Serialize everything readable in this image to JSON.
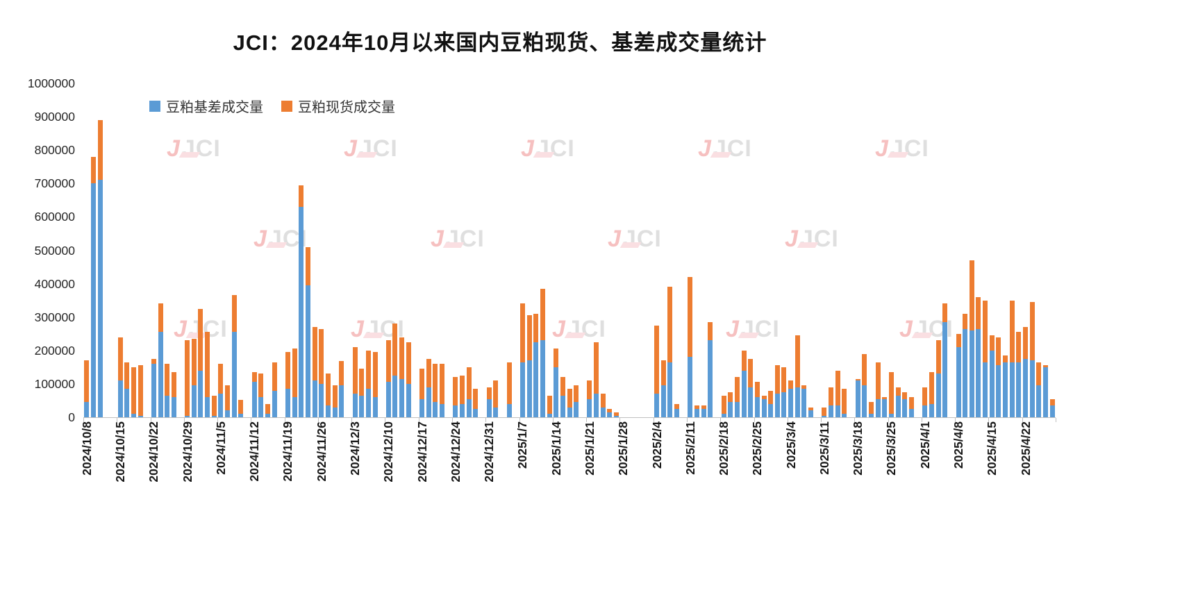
{
  "title": "JCI：2024年10月以来国内豆粕现货、基差成交量统计",
  "watermark": {
    "mark": "J",
    "text": "JCI"
  },
  "legend": {
    "items": [
      {
        "label": "豆粕基差成交量",
        "color": "#5B9BD5"
      },
      {
        "label": "豆粕现货成交量",
        "color": "#ED7D31"
      }
    ]
  },
  "chart_data": {
    "type": "bar",
    "stacked": true,
    "title": "JCI：2024年10月以来国内豆粕现货、基差成交量统计",
    "xlabel": "",
    "ylabel": "",
    "ylim": [
      0,
      1000000
    ],
    "ytick_interval": 100000,
    "yticks": [
      0,
      100000,
      200000,
      300000,
      400000,
      500000,
      600000,
      700000,
      800000,
      900000,
      1000000
    ],
    "grid": false,
    "legend_position": "top-left",
    "week_labels": [
      "2024/10/8",
      "2024/10/15",
      "2024/10/22",
      "2024/10/29",
      "2024/11/5",
      "2024/11/12",
      "2024/11/19",
      "2024/11/26",
      "2024/12/3",
      "2024/12/10",
      "2024/12/17",
      "2024/12/24",
      "2024/12/31",
      "2025/1/7",
      "2025/1/14",
      "2025/1/21",
      "2025/1/28",
      "2025/2/4",
      "2025/2/11",
      "2025/2/18",
      "2025/2/25",
      "2025/3/4",
      "2025/3/11",
      "2025/3/18",
      "2025/3/25",
      "2025/4/1",
      "2025/4/8",
      "2025/4/15",
      "2025/4/22"
    ],
    "days_per_week": 5,
    "series": [
      {
        "name": "豆粕基差成交量",
        "color": "#5B9BD5",
        "values": [
          45000,
          700000,
          710000,
          0,
          0,
          110000,
          85000,
          10000,
          5000,
          0,
          160000,
          255000,
          65000,
          60000,
          0,
          5000,
          95000,
          140000,
          60000,
          5000,
          70000,
          20000,
          255000,
          10000,
          0,
          105000,
          60000,
          10000,
          80000,
          0,
          85000,
          60000,
          630000,
          395000,
          110000,
          100000,
          35000,
          30000,
          95000,
          0,
          70000,
          65000,
          85000,
          60000,
          0,
          105000,
          125000,
          115000,
          100000,
          0,
          55000,
          90000,
          45000,
          40000,
          0,
          35000,
          40000,
          55000,
          25000,
          0,
          55000,
          30000,
          0,
          40000,
          0,
          165000,
          170000,
          225000,
          230000,
          10000,
          150000,
          65000,
          30000,
          45000,
          0,
          55000,
          70000,
          30000,
          15000,
          5000,
          0,
          0,
          0,
          0,
          0,
          70000,
          95000,
          165000,
          25000,
          0,
          180000,
          25000,
          25000,
          230000,
          0,
          10000,
          45000,
          45000,
          140000,
          90000,
          60000,
          55000,
          40000,
          70000,
          75000,
          85000,
          90000,
          85000,
          20000,
          0,
          5000,
          35000,
          35000,
          10000,
          0,
          110000,
          95000,
          10000,
          55000,
          55000,
          10000,
          65000,
          55000,
          25000,
          0,
          35000,
          40000,
          130000,
          285000,
          0,
          210000,
          265000,
          260000,
          265000,
          165000,
          200000,
          155000,
          165000,
          165000,
          165000,
          175000,
          170000,
          95000,
          150000,
          35000
        ]
      },
      {
        "name": "豆粕现货成交量",
        "color": "#ED7D31",
        "values": [
          125000,
          80000,
          180000,
          0,
          0,
          130000,
          80000,
          140000,
          150000,
          0,
          15000,
          85000,
          95000,
          75000,
          0,
          225000,
          140000,
          185000,
          195000,
          60000,
          90000,
          75000,
          110000,
          42000,
          0,
          30000,
          70000,
          30000,
          85000,
          0,
          110000,
          145000,
          65000,
          115000,
          160000,
          165000,
          95000,
          65000,
          73000,
          0,
          140000,
          80000,
          115000,
          135000,
          0,
          125000,
          155000,
          125000,
          125000,
          0,
          90000,
          85000,
          115000,
          120000,
          0,
          85000,
          85000,
          95000,
          60000,
          0,
          35000,
          80000,
          0,
          125000,
          0,
          175000,
          135000,
          85000,
          155000,
          55000,
          55000,
          55000,
          55000,
          50000,
          0,
          55000,
          155000,
          40000,
          10000,
          10000,
          0,
          0,
          0,
          0,
          0,
          205000,
          75000,
          225000,
          15000,
          0,
          240000,
          10000,
          10000,
          55000,
          0,
          55000,
          30000,
          75000,
          60000,
          85000,
          45000,
          10000,
          40000,
          85000,
          75000,
          25000,
          155000,
          10000,
          10000,
          0,
          25000,
          55000,
          105000,
          75000,
          0,
          5000,
          95000,
          35000,
          110000,
          5000,
          125000,
          25000,
          20000,
          35000,
          0,
          55000,
          95000,
          100000,
          55000,
          0,
          40000,
          45000,
          210000,
          95000,
          185000,
          45000,
          85000,
          20000,
          185000,
          90000,
          95000,
          175000,
          70000,
          5000,
          20000
        ]
      }
    ]
  }
}
